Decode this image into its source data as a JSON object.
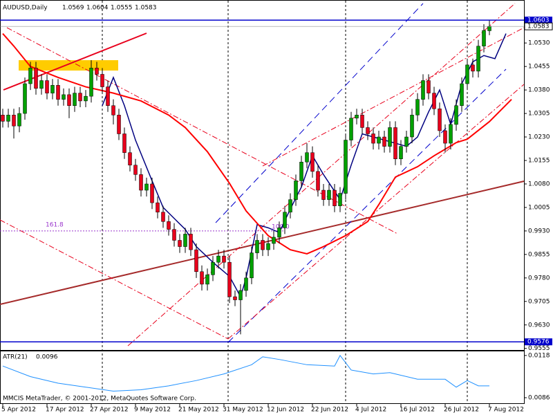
{
  "header": {
    "symbol": "AUDUSD,Daily"
  },
  "footer": "MMCIS MetaTrader, © 2001-2012, MetaQuotes Software Corp.",
  "chart_data": [
    {
      "type": "candlestick",
      "categories": [
        "5 Apr 2012",
        null,
        null,
        null,
        null,
        null,
        null,
        null,
        "17 Apr 2012",
        null,
        null,
        null,
        null,
        null,
        null,
        null,
        "27 Apr 2012",
        null,
        null,
        null,
        null,
        null,
        null,
        null,
        "9 May 2012",
        null,
        null,
        null,
        null,
        null,
        null,
        null,
        "21 May 2012",
        null,
        null,
        null,
        null,
        null,
        null,
        null,
        "31 May 2012",
        null,
        null,
        null,
        null,
        null,
        null,
        null,
        "12 Jun 2012",
        null,
        null,
        null,
        null,
        null,
        null,
        null,
        "22 Jun 2012",
        null,
        null,
        null,
        null,
        null,
        null,
        null,
        "4 Jul 2012",
        null,
        null,
        null,
        null,
        null,
        null,
        null,
        "16 Jul 2012",
        null,
        null,
        null,
        null,
        null,
        null,
        null,
        "26 Jul 2012",
        null,
        null,
        null,
        null,
        null,
        null,
        null,
        "7 Aug 2012"
      ],
      "open": [
        1.03,
        1.028,
        1.03,
        1.0265,
        1.0305,
        1.04,
        1.045,
        1.0385,
        1.041,
        1.037,
        1.0395,
        1.035,
        1.0365,
        1.033,
        1.037,
        1.0345,
        1.036,
        1.045,
        1.043,
        1.039,
        1.033,
        1.03,
        1.024,
        1.018,
        1.014,
        1.011,
        1.006,
        1.008,
        1.002,
        0.999,
        0.996,
        0.9935,
        0.99,
        0.988,
        0.992,
        0.987,
        0.98,
        0.976,
        0.979,
        0.983,
        0.985,
        0.983,
        0.972,
        0.971,
        0.974,
        0.978,
        0.986,
        0.99,
        0.987,
        0.989,
        0.991,
        0.994,
        0.999,
        1.003,
        1.009,
        1.015,
        1.018,
        1.012,
        1.006,
        1.003,
        1.006,
        1.001,
        1.005,
        1.022,
        1.029,
        1.03,
        1.026,
        1.024,
        1.021,
        1.023,
        1.02,
        1.026,
        1.016,
        1.02,
        1.023,
        1.03,
        1.035,
        1.041,
        1.037,
        1.032,
        1.025,
        1.021,
        1.027,
        1.033,
        1.04,
        1.046,
        1.044,
        1.052,
        1.0569
      ],
      "high": [
        1.032,
        1.032,
        1.032,
        1.0325,
        1.042,
        1.047,
        1.047,
        1.043,
        1.043,
        1.0415,
        1.0415,
        1.0385,
        1.0385,
        1.039,
        1.039,
        1.038,
        1.0475,
        1.047,
        1.045,
        1.041,
        1.035,
        1.032,
        1.026,
        1.02,
        1.016,
        1.013,
        1.01,
        1.01,
        1.004,
        1.001,
        0.998,
        0.9955,
        0.992,
        0.994,
        0.994,
        0.989,
        0.982,
        0.981,
        0.985,
        0.987,
        0.987,
        0.985,
        0.974,
        0.976,
        0.98,
        0.988,
        0.992,
        0.992,
        0.991,
        0.993,
        0.996,
        1.001,
        1.005,
        1.011,
        1.017,
        1.021,
        1.02,
        1.014,
        1.008,
        1.008,
        1.008,
        1.007,
        1.024,
        1.031,
        1.032,
        1.032,
        1.028,
        1.026,
        1.025,
        1.025,
        1.028,
        1.028,
        1.022,
        1.025,
        1.032,
        1.037,
        1.043,
        1.043,
        1.039,
        1.034,
        1.027,
        1.029,
        1.035,
        1.042,
        1.048,
        1.048,
        1.054,
        1.059,
        1.0604
      ],
      "low": [
        1.026,
        1.026,
        1.0225,
        1.0245,
        1.0285,
        1.038,
        1.0365,
        1.0365,
        1.035,
        1.035,
        1.033,
        1.033,
        1.029,
        1.031,
        1.0325,
        1.0325,
        1.034,
        1.041,
        1.037,
        1.031,
        1.027,
        1.022,
        1.016,
        1.012,
        1.009,
        1.004,
        1.004,
        1.0,
        0.997,
        0.994,
        0.9915,
        0.988,
        0.986,
        0.986,
        0.985,
        0.978,
        0.974,
        0.974,
        0.977,
        0.981,
        0.981,
        0.97,
        0.969,
        0.96,
        0.972,
        0.976,
        0.984,
        0.985,
        0.985,
        0.987,
        0.989,
        0.992,
        0.997,
        1.001,
        1.007,
        1.013,
        1.01,
        1.004,
        1.001,
        1.001,
        0.999,
        0.999,
        1.003,
        1.02,
        1.027,
        1.024,
        1.022,
        1.019,
        1.019,
        1.018,
        1.018,
        1.014,
        1.014,
        1.018,
        1.021,
        1.028,
        1.033,
        1.035,
        1.03,
        1.023,
        1.018,
        1.019,
        1.025,
        1.031,
        1.038,
        1.042,
        1.042,
        1.05,
        1.0555
      ],
      "close": [
        1.028,
        1.03,
        1.0265,
        1.0305,
        1.04,
        1.045,
        1.0385,
        1.041,
        1.037,
        1.0395,
        1.035,
        1.0365,
        1.033,
        1.037,
        1.0345,
        1.036,
        1.045,
        1.043,
        1.039,
        1.033,
        1.03,
        1.024,
        1.018,
        1.014,
        1.011,
        1.006,
        1.008,
        1.002,
        0.999,
        0.996,
        0.9935,
        0.99,
        0.988,
        0.992,
        0.987,
        0.98,
        0.976,
        0.979,
        0.983,
        0.985,
        0.983,
        0.972,
        0.971,
        0.974,
        0.978,
        0.986,
        0.99,
        0.987,
        0.989,
        0.991,
        0.994,
        0.999,
        1.003,
        1.009,
        1.015,
        1.018,
        1.012,
        1.006,
        1.003,
        1.006,
        1.001,
        1.005,
        1.022,
        1.029,
        1.03,
        1.026,
        1.024,
        1.021,
        1.023,
        1.02,
        1.026,
        1.016,
        1.02,
        1.023,
        1.03,
        1.035,
        1.041,
        1.037,
        1.032,
        1.025,
        1.021,
        1.027,
        1.033,
        1.04,
        1.046,
        1.044,
        1.052,
        1.057,
        1.0583
      ],
      "up_color": "#00a000",
      "down_color": "#e8001c",
      "ylim": [
        0.955,
        1.0665
      ],
      "yticks": [
        {
          "value": 1.053,
          "label": "1.0530"
        },
        1.0455,
        {
          "value": 1.038,
          "label": "1.0380"
        },
        1.0305,
        {
          "value": 1.023,
          "label": "1.0230"
        },
        1.0155,
        {
          "value": 1.008,
          "label": "1.0080"
        },
        1.0005,
        {
          "value": 0.993,
          "label": "0.9930"
        },
        0.9855,
        {
          "value": 0.978,
          "label": "0.9780"
        },
        0.9705,
        {
          "value": 0.963,
          "label": "0.9630"
        },
        0.9555
      ],
      "hlines": [
        {
          "value": 1.0603,
          "color": "#0000cc"
        },
        {
          "value": 0.9576,
          "color": "#0000cc"
        }
      ],
      "fib": {
        "level": 0.993,
        "labels": [
          "161.8",
          "100.0"
        ],
        "color": "#9933cc"
      },
      "series": [
        {
          "color": "#000080",
          "x": [
            18,
            20,
            22,
            24,
            27,
            29,
            33,
            35,
            38,
            41,
            43,
            44,
            46,
            48,
            50,
            52,
            54,
            56,
            58,
            61,
            63,
            65,
            67,
            71,
            73,
            75,
            77,
            79,
            81,
            83,
            85,
            87,
            89,
            91
          ],
          "values": [
            1.033,
            1.042,
            1.033,
            1.022,
            1.009,
            1.0005,
            0.9935,
            0.988,
            0.983,
            0.9785,
            0.972,
            0.978,
            0.995,
            0.994,
            0.9925,
            1.0,
            1.007,
            1.017,
            1.011,
            1.003,
            1.014,
            1.024,
            1.023,
            1.021,
            1.02,
            1.023,
            1.031,
            1.038,
            1.027,
            1.04,
            1.047,
            1.049,
            1.048,
            1.056
          ]
        },
        {
          "color": "#ff0000",
          "x": [
            0,
            2,
            5,
            10,
            15,
            20,
            25,
            30,
            33,
            37,
            41,
            44,
            48,
            52,
            55,
            58,
            62,
            66,
            68,
            71,
            75,
            78,
            82,
            84,
            88,
            92
          ],
          "values": [
            1.056,
            1.052,
            1.0455,
            1.042,
            1.039,
            1.037,
            1.0345,
            1.03,
            1.026,
            1.0183,
            1.0082,
            0.9994,
            0.9915,
            0.987,
            0.9857,
            0.988,
            0.9915,
            0.996,
            1.0014,
            1.0102,
            1.0135,
            1.017,
            1.0212,
            1.0223,
            1.0279,
            1.035
          ]
        }
      ]
    },
    {
      "type": "line",
      "title": "ATR(21)",
      "current": 0.0096,
      "color": "#1e90ff",
      "x": [
        0,
        5,
        10,
        15,
        20,
        25,
        30,
        35,
        40,
        45,
        47,
        50,
        55,
        60,
        61,
        63,
        67,
        70,
        75,
        80,
        82,
        84,
        86,
        88
      ],
      "values": [
        0.011,
        0.0102,
        0.0097,
        0.0094,
        0.0091,
        0.0092,
        0.0095,
        0.0099,
        0.0104,
        0.0111,
        0.0117,
        0.0115,
        0.0111,
        0.011,
        0.0118,
        0.0107,
        0.0104,
        0.0105,
        0.01,
        0.01,
        0.0094,
        0.0099,
        0.0095,
        0.0095
      ],
      "ylim": [
        0.00818,
        0.01206
      ],
      "yticks": [
        0.0118,
        0.0086
      ]
    }
  ]
}
